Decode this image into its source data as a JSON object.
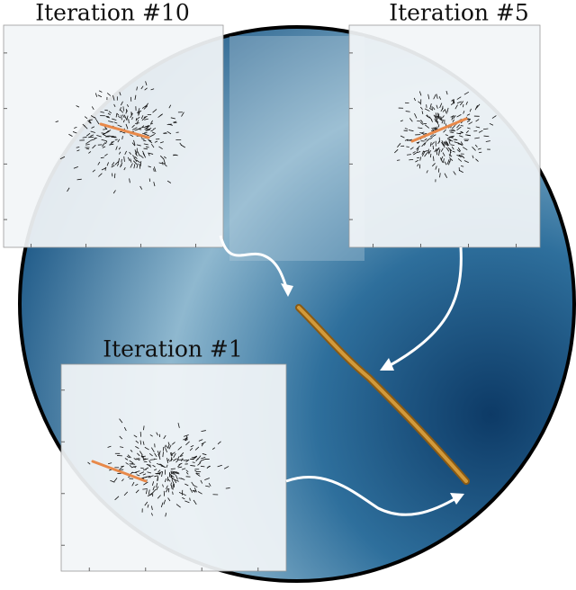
{
  "panels": [
    {
      "label": "Iteration #10"
    },
    {
      "label": "Iteration #5"
    },
    {
      "label": "Iteration #1"
    }
  ]
}
